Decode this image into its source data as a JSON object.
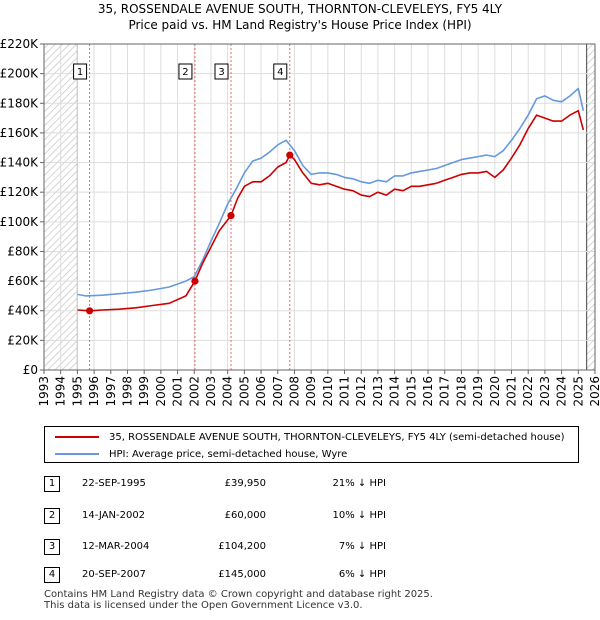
{
  "chart_data": {
    "type": "line",
    "title": "35, ROSSENDALE AVENUE SOUTH, THORNTON-CLEVELEYS, FY5 4LY",
    "subtitle": "Price paid vs. HM Land Registry's House Price Index (HPI)",
    "xlim": [
      1993,
      2026
    ],
    "ylim": [
      0,
      220000
    ],
    "x_ticks": [
      1993,
      1994,
      1995,
      1996,
      1997,
      1998,
      1999,
      2000,
      2001,
      2002,
      2003,
      2004,
      2005,
      2006,
      2007,
      2008,
      2009,
      2010,
      2011,
      2012,
      2013,
      2014,
      2015,
      2016,
      2017,
      2018,
      2019,
      2020,
      2021,
      2022,
      2023,
      2024,
      2025,
      2026
    ],
    "y_ticks": [
      0,
      20000,
      40000,
      60000,
      80000,
      100000,
      120000,
      140000,
      160000,
      180000,
      200000,
      220000
    ],
    "y_tick_labels": [
      "£0",
      "£20K",
      "£40K",
      "£60K",
      "£80K",
      "£100K",
      "£120K",
      "£140K",
      "£160K",
      "£180K",
      "£200K",
      "£220K"
    ],
    "grid": true,
    "hatched_ranges": [
      [
        1993,
        1995.0
      ],
      [
        2025.5,
        2026
      ]
    ],
    "series": [
      {
        "name": "35, ROSSENDALE AVENUE SOUTH, THORNTON-CLEVELEYS, FY5 4LY (semi-detached house)",
        "color": "#cc0000",
        "x": [
          1995.0,
          1995.73,
          1996.5,
          1997.5,
          1998.5,
          1999.5,
          2000.5,
          2001.5,
          2002.04,
          2002.5,
          2003.0,
          2003.5,
          2004.2,
          2004.6,
          2005.0,
          2005.5,
          2006.0,
          2006.5,
          2007.0,
          2007.5,
          2007.72,
          2008.0,
          2008.5,
          2009.0,
          2009.5,
          2010.0,
          2010.5,
          2011.0,
          2011.5,
          2012.0,
          2012.5,
          2013.0,
          2013.5,
          2014.0,
          2014.5,
          2015.0,
          2015.5,
          2016.0,
          2016.5,
          2017.0,
          2017.5,
          2018.0,
          2018.5,
          2019.0,
          2019.5,
          2020.0,
          2020.5,
          2021.0,
          2021.5,
          2022.0,
          2022.5,
          2023.0,
          2023.5,
          2024.0,
          2024.5,
          2025.0,
          2025.3
        ],
        "y": [
          40500,
          39950,
          40500,
          41000,
          42000,
          43500,
          45000,
          50000,
          60000,
          72000,
          83000,
          94000,
          104200,
          116000,
          124000,
          127000,
          127000,
          131000,
          137000,
          140000,
          145000,
          142000,
          133000,
          126000,
          125000,
          126000,
          124000,
          122000,
          121000,
          118000,
          117000,
          120000,
          118000,
          122000,
          121000,
          124000,
          124000,
          125000,
          126000,
          128000,
          130000,
          132000,
          133000,
          133000,
          134000,
          130000,
          135000,
          143000,
          152000,
          163000,
          172000,
          170000,
          168000,
          168000,
          172000,
          175000,
          162000
        ]
      },
      {
        "name": "HPI: Average price, semi-detached house, Wyre",
        "color": "#6699dd",
        "x": [
          1995.0,
          1995.5,
          1996.5,
          1997.5,
          1998.5,
          1999.5,
          2000.5,
          2001.5,
          2002.0,
          2002.5,
          2003.0,
          2003.5,
          2004.0,
          2004.5,
          2005.0,
          2005.5,
          2006.0,
          2006.5,
          2007.0,
          2007.5,
          2008.0,
          2008.5,
          2009.0,
          2009.5,
          2010.0,
          2010.5,
          2011.0,
          2011.5,
          2012.0,
          2012.5,
          2013.0,
          2013.5,
          2014.0,
          2014.5,
          2015.0,
          2015.5,
          2016.0,
          2016.5,
          2017.0,
          2017.5,
          2018.0,
          2018.5,
          2019.0,
          2019.5,
          2020.0,
          2020.5,
          2021.0,
          2021.5,
          2022.0,
          2022.5,
          2023.0,
          2023.5,
          2024.0,
          2024.5,
          2025.0,
          2025.3
        ],
        "y": [
          51000,
          50000,
          50500,
          51500,
          52500,
          54000,
          56000,
          60000,
          63000,
          74000,
          87000,
          99000,
          112000,
          122000,
          133000,
          141000,
          143000,
          147000,
          152000,
          155000,
          148000,
          138000,
          132000,
          133000,
          133000,
          132000,
          130000,
          129000,
          127000,
          126000,
          128000,
          127000,
          131000,
          131000,
          133000,
          134000,
          135000,
          136000,
          138000,
          140000,
          142000,
          143000,
          144000,
          145000,
          144000,
          148000,
          155000,
          163000,
          172000,
          183000,
          185000,
          182000,
          181000,
          185000,
          190000,
          175000
        ]
      }
    ],
    "transactions": [
      {
        "label": "1",
        "x": 1995.73,
        "y": 39950
      },
      {
        "label": "2",
        "x": 2002.04,
        "y": 60000
      },
      {
        "label": "3",
        "x": 2004.2,
        "y": 104200
      },
      {
        "label": "4",
        "x": 2007.72,
        "y": 145000
      }
    ]
  },
  "legend": {
    "items": [
      {
        "label": "35, ROSSENDALE AVENUE SOUTH, THORNTON-CLEVELEYS, FY5 4LY (semi-detached house)",
        "color": "#cc0000"
      },
      {
        "label": "HPI: Average price, semi-detached house, Wyre",
        "color": "#6699dd"
      }
    ]
  },
  "table": {
    "rows": [
      {
        "num": "1",
        "date": "22-SEP-1995",
        "price": "£39,950",
        "hpi": "21% ↓ HPI"
      },
      {
        "num": "2",
        "date": "14-JAN-2002",
        "price": "£60,000",
        "hpi": "10% ↓ HPI"
      },
      {
        "num": "3",
        "date": "12-MAR-2004",
        "price": "£104,200",
        "hpi": "7% ↓ HPI"
      },
      {
        "num": "4",
        "date": "20-SEP-2007",
        "price": "£145,000",
        "hpi": "6% ↓ HPI"
      }
    ]
  },
  "footer": {
    "line1": "Contains HM Land Registry data © Crown copyright and database right 2025.",
    "line2": "This data is licensed under the Open Government Licence v3.0."
  }
}
